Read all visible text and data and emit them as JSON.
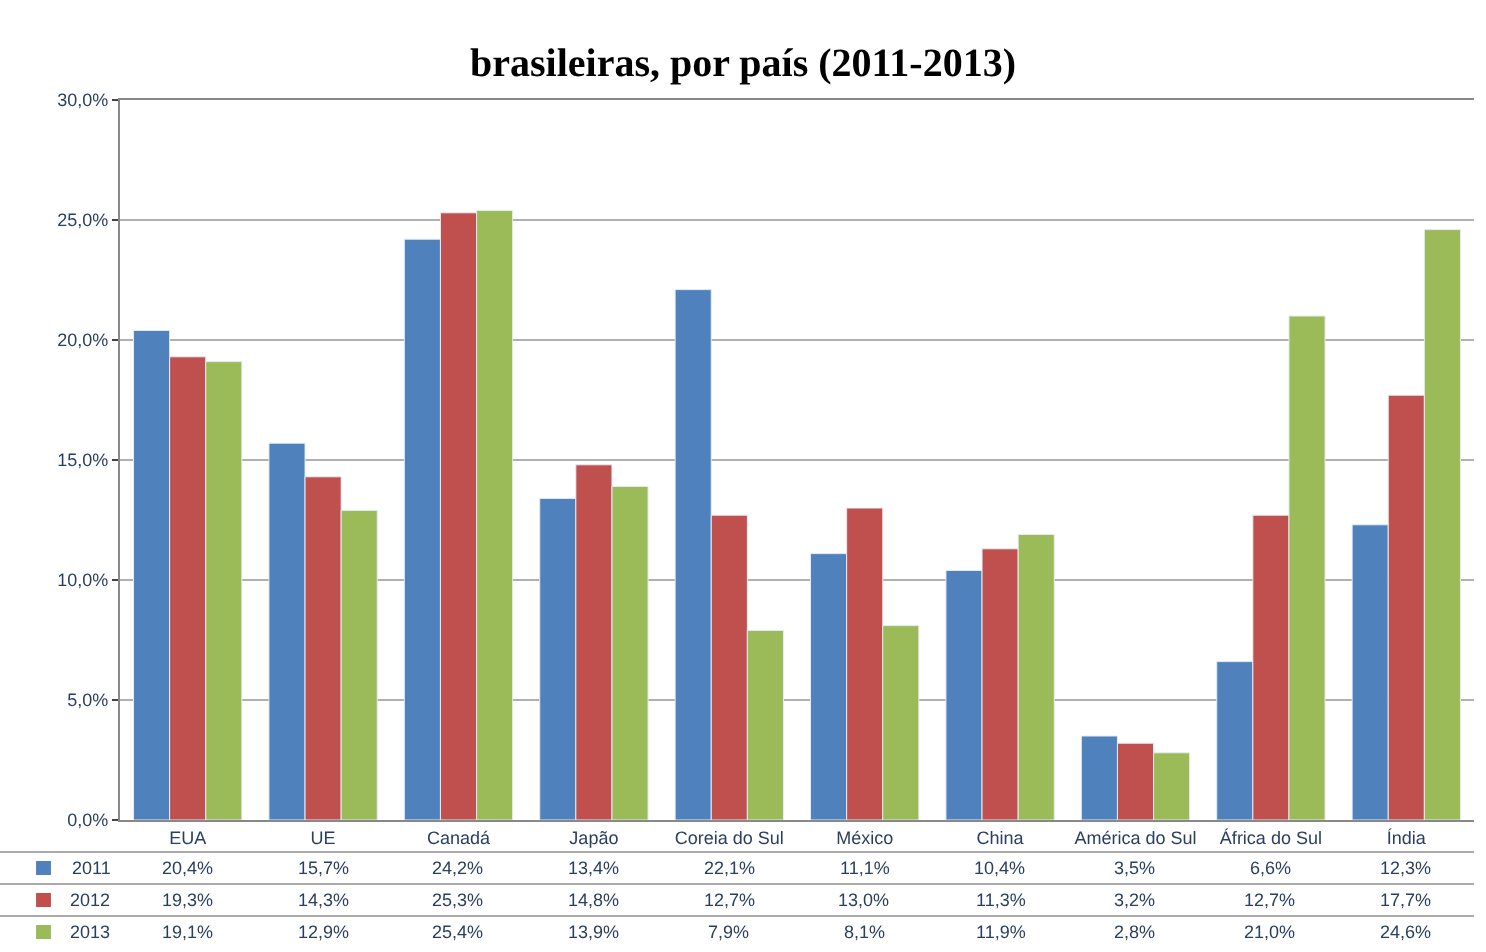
{
  "chart_data": {
    "type": "bar",
    "title": "brasileiras, por país (2011-2013)",
    "categories": [
      "EUA",
      "UE",
      "Canadá",
      "Japão",
      "Coreia do Sul",
      "México",
      "China",
      "América do Sul",
      "África do Sul",
      "Índia"
    ],
    "series": [
      {
        "name": "2011",
        "color": "#4f81bd",
        "values": [
          20.4,
          15.7,
          24.2,
          13.4,
          22.1,
          11.1,
          10.4,
          3.5,
          6.6,
          12.3
        ],
        "value_labels": [
          "20,4%",
          "15,7%",
          "24,2%",
          "13,4%",
          "22,1%",
          "11,1%",
          "10,4%",
          "3,5%",
          "6,6%",
          "12,3%"
        ]
      },
      {
        "name": "2012",
        "color": "#c0504d",
        "values": [
          19.3,
          14.3,
          25.3,
          14.8,
          12.7,
          13.0,
          11.3,
          3.2,
          12.7,
          17.7
        ],
        "value_labels": [
          "19,3%",
          "14,3%",
          "25,3%",
          "14,8%",
          "12,7%",
          "13,0%",
          "11,3%",
          "3,2%",
          "12,7%",
          "17,7%"
        ]
      },
      {
        "name": "2013",
        "color": "#9bbb59",
        "values": [
          19.1,
          12.9,
          25.4,
          13.9,
          7.9,
          8.1,
          11.9,
          2.8,
          21.0,
          24.6
        ],
        "value_labels": [
          "19,1%",
          "12,9%",
          "25,4%",
          "13,9%",
          "7,9%",
          "8,1%",
          "11,9%",
          "2,8%",
          "21,0%",
          "24,6%"
        ]
      }
    ],
    "ylim": [
      0,
      30
    ],
    "yticks": [
      {
        "value": 0,
        "label": "0,0%"
      },
      {
        "value": 5,
        "label": "5,0%"
      },
      {
        "value": 10,
        "label": "10,0%"
      },
      {
        "value": 15,
        "label": "15,0%"
      },
      {
        "value": 20,
        "label": "20,0%"
      },
      {
        "value": 25,
        "label": "25,0%"
      },
      {
        "value": 30,
        "label": "30,0%"
      }
    ],
    "grid": "y",
    "legend": "bottom left"
  }
}
